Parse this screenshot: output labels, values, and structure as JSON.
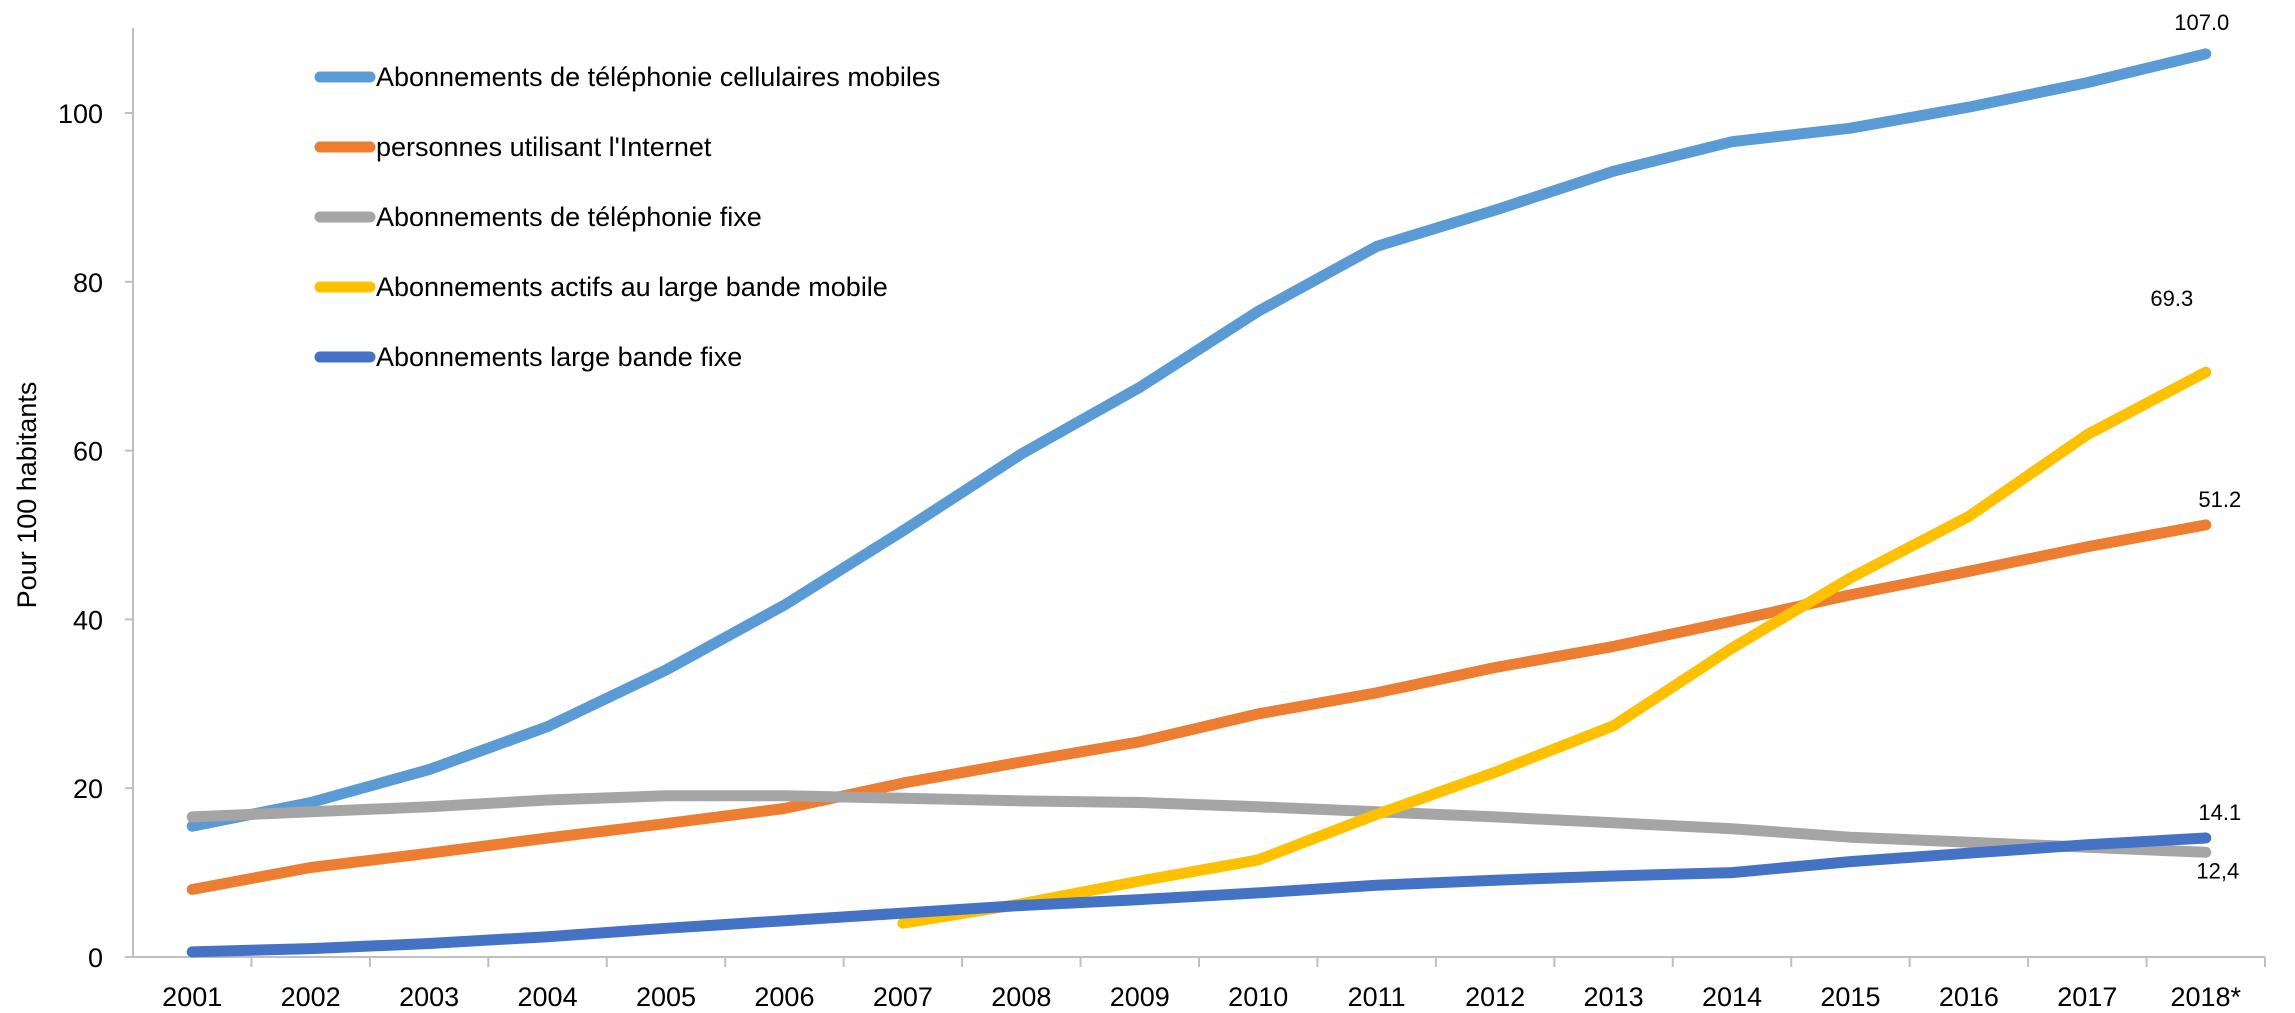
{
  "chart_data": {
    "type": "line",
    "title": "",
    "xlabel": "",
    "ylabel": "Pour 100 habitants",
    "categories": [
      "2001",
      "2002",
      "2003",
      "2004",
      "2005",
      "2006",
      "2007",
      "2008",
      "2009",
      "2010",
      "2011",
      "2012",
      "2013",
      "2014",
      "2015",
      "2016",
      "2017",
      "2018*"
    ],
    "ylim": [
      0,
      110
    ],
    "yticks": [
      "0",
      "20",
      "40",
      "60",
      "80",
      "100"
    ],
    "grid": false,
    "legend_position": "top-left",
    "series": [
      {
        "name": "Abonnements de téléphonie cellulaires mobiles",
        "color": "#5B9BD5",
        "values": [
          15.5,
          18.3,
          22.2,
          27.3,
          34.0,
          41.7,
          50.5,
          59.6,
          67.5,
          76.5,
          84.2,
          88.5,
          93.1,
          96.6,
          98.2,
          100.7,
          103.6,
          107.0
        ],
        "end_label": "107.0"
      },
      {
        "name": "personnes utilisant l'Internet",
        "color": "#ED7D31",
        "values": [
          8.0,
          10.6,
          12.3,
          14.1,
          15.8,
          17.6,
          20.6,
          23.1,
          25.5,
          28.8,
          31.3,
          34.3,
          36.8,
          39.8,
          42.9,
          45.7,
          48.6,
          51.2
        ],
        "end_label": "51.2"
      },
      {
        "name": "Abonnements de téléphonie fixe",
        "color": "#A5A5A5",
        "values": [
          16.6,
          17.2,
          17.8,
          18.6,
          19.1,
          19.1,
          18.8,
          18.5,
          18.3,
          17.8,
          17.2,
          16.6,
          15.9,
          15.2,
          14.2,
          13.6,
          13.0,
          12.4
        ],
        "end_label": "12,4"
      },
      {
        "name": "Abonnements actifs au large bande mobile",
        "color": "#FFC000",
        "values": [
          null,
          null,
          null,
          null,
          null,
          null,
          4.0,
          6.3,
          9.0,
          11.5,
          16.9,
          21.9,
          27.4,
          36.6,
          44.9,
          52.2,
          61.9,
          69.3
        ],
        "end_label": "69.3"
      },
      {
        "name": "Abonnements large bande fixe",
        "color": "#4472C4",
        "values": [
          0.6,
          1.0,
          1.6,
          2.4,
          3.4,
          4.3,
          5.2,
          6.1,
          6.8,
          7.6,
          8.5,
          9.1,
          9.6,
          10.0,
          11.3,
          12.3,
          13.3,
          14.1
        ],
        "end_label": "14.1"
      }
    ]
  }
}
